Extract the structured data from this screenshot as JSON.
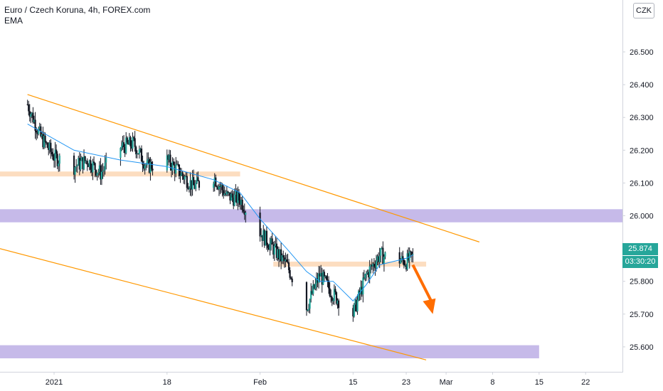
{
  "header": {
    "title": "Euro / Czech Koruna, 4h, FOREX.com",
    "indicator": "EMA",
    "currency_button": "CZK"
  },
  "price_tag": {
    "value": "25.874",
    "countdown": "03:30:20"
  },
  "colors": {
    "up": "#26a69a",
    "candle": "#131722",
    "ema": "#2196f3",
    "channel": "#ff9800",
    "resistance_zone": "#b8a9e3",
    "support_zone": "#fbd5b0",
    "arrow": "#ff6d00",
    "axis_text": "#131722",
    "axis_line": "#d1d4dc"
  },
  "chart_data": {
    "type": "candlestick",
    "symbol": "EURCZK",
    "timeframe": "4h",
    "y_ticks": [
      "25.600",
      "25.700",
      "25.800",
      "25.900",
      "26.000",
      "26.100",
      "26.200",
      "26.300",
      "26.400",
      "26.500"
    ],
    "ylim": [
      25.53,
      26.63
    ],
    "x_ticks": [
      "2021",
      "18",
      "Feb",
      "15",
      "23",
      "Mar",
      "8",
      "15",
      "22"
    ],
    "close_path": [
      [
        "2020-12-28",
        26.34
      ],
      [
        "2020-12-30",
        26.24
      ],
      [
        "2021-01-01",
        26.18
      ],
      [
        "2021-01-04",
        26.15
      ],
      [
        "2021-01-06",
        26.17
      ],
      [
        "2021-01-08",
        26.13
      ],
      [
        "2021-01-11",
        26.21
      ],
      [
        "2021-01-13",
        26.22
      ],
      [
        "2021-01-15",
        26.15
      ],
      [
        "2021-01-18",
        26.17
      ],
      [
        "2021-01-20",
        26.13
      ],
      [
        "2021-01-22",
        26.09
      ],
      [
        "2021-01-25",
        26.12
      ],
      [
        "2021-01-27",
        26.06
      ],
      [
        "2021-01-29",
        26.05
      ],
      [
        "2021-02-01",
        25.95
      ],
      [
        "2021-02-03",
        25.9
      ],
      [
        "2021-02-05",
        25.85
      ],
      [
        "2021-02-08",
        25.72
      ],
      [
        "2021-02-10",
        25.82
      ],
      [
        "2021-02-12",
        25.76
      ],
      [
        "2021-02-15",
        25.7
      ],
      [
        "2021-02-17",
        25.82
      ],
      [
        "2021-02-19",
        25.88
      ],
      [
        "2021-02-21",
        25.87
      ],
      [
        "2021-02-23",
        25.86
      ],
      [
        "2021-02-24",
        25.874
      ]
    ],
    "ema_path": [
      [
        "2020-12-28",
        26.28
      ],
      [
        "2021-01-04",
        26.2
      ],
      [
        "2021-01-11",
        26.17
      ],
      [
        "2021-01-18",
        26.15
      ],
      [
        "2021-01-25",
        26.11
      ],
      [
        "2021-01-29",
        26.07
      ],
      [
        "2021-02-01",
        25.99
      ],
      [
        "2021-02-05",
        25.9
      ],
      [
        "2021-02-08",
        25.83
      ],
      [
        "2021-02-10",
        25.8
      ],
      [
        "2021-02-12",
        25.8
      ],
      [
        "2021-02-15",
        25.74
      ],
      [
        "2021-02-17",
        25.79
      ],
      [
        "2021-02-19",
        25.85
      ],
      [
        "2021-02-23",
        25.87
      ],
      [
        "2021-02-24",
        25.88
      ]
    ],
    "annotations": {
      "channel_upper": [
        [
          "2020-12-28",
          26.37
        ],
        [
          "2021-03-06",
          25.92
        ]
      ],
      "channel_lower": [
        [
          "2020-12-20",
          25.92
        ],
        [
          "2021-02-26",
          25.56
        ]
      ],
      "zones": [
        {
          "kind": "resistance",
          "from": "2020-12-20",
          "to": "2021-03-30",
          "low": 25.98,
          "high": 26.02
        },
        {
          "kind": "support",
          "from": "2020-12-20",
          "to": "2021-03-15",
          "low": 25.565,
          "high": 25.605
        },
        {
          "kind": "level",
          "from": "2020-12-20",
          "to": "2021-01-29",
          "low": 26.12,
          "high": 26.135
        },
        {
          "kind": "level",
          "from": "2021-02-03",
          "to": "2021-02-26",
          "low": 25.845,
          "high": 25.86
        }
      ],
      "arrow": {
        "from": [
          "2021-02-24",
          25.85
        ],
        "to": [
          "2021-02-27",
          25.7
        ],
        "direction": "down"
      }
    },
    "grid": false,
    "legend": "top-left"
  }
}
